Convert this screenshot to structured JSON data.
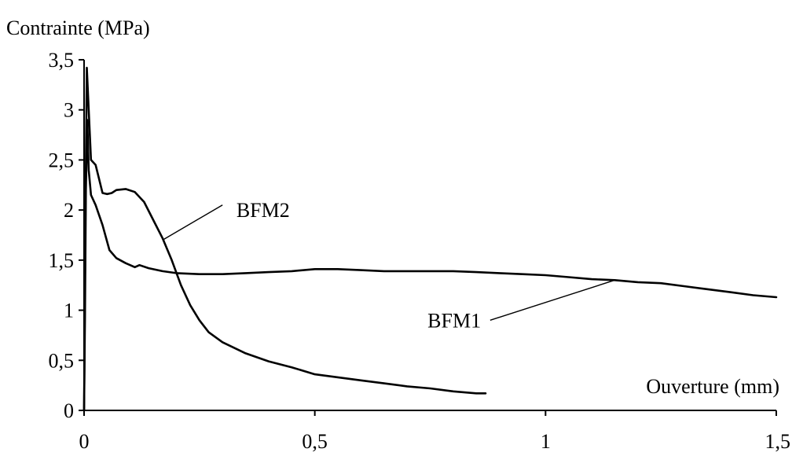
{
  "chart_data": {
    "type": "line",
    "ylabel": "Contrainte (MPa)",
    "xlabel": "Ouverture (mm)",
    "xlim": [
      0,
      1.5
    ],
    "ylim": [
      0,
      3.5
    ],
    "x_ticks": [
      0,
      0.5,
      1,
      1.5
    ],
    "x_tick_labels": [
      "0",
      "0,5",
      "1",
      "1,5"
    ],
    "y_ticks": [
      0,
      0.5,
      1,
      1.5,
      2,
      2.5,
      3,
      3.5
    ],
    "y_tick_labels": [
      "0",
      "0,5",
      "1",
      "1,5",
      "2",
      "2,5",
      "3",
      "3,5"
    ],
    "grid": false,
    "legend": "none",
    "series": [
      {
        "name": "BFM1",
        "color": "#000000",
        "points": [
          [
            0,
            0
          ],
          [
            0.002,
            1.0
          ],
          [
            0.004,
            2.2
          ],
          [
            0.007,
            2.9
          ],
          [
            0.01,
            2.4
          ],
          [
            0.015,
            2.15
          ],
          [
            0.025,
            2.05
          ],
          [
            0.04,
            1.85
          ],
          [
            0.055,
            1.6
          ],
          [
            0.07,
            1.52
          ],
          [
            0.09,
            1.47
          ],
          [
            0.11,
            1.43
          ],
          [
            0.12,
            1.45
          ],
          [
            0.14,
            1.42
          ],
          [
            0.17,
            1.39
          ],
          [
            0.2,
            1.37
          ],
          [
            0.25,
            1.36
          ],
          [
            0.3,
            1.36
          ],
          [
            0.35,
            1.37
          ],
          [
            0.4,
            1.38
          ],
          [
            0.45,
            1.39
          ],
          [
            0.5,
            1.41
          ],
          [
            0.55,
            1.41
          ],
          [
            0.6,
            1.4
          ],
          [
            0.65,
            1.39
          ],
          [
            0.7,
            1.39
          ],
          [
            0.75,
            1.39
          ],
          [
            0.8,
            1.39
          ],
          [
            0.85,
            1.38
          ],
          [
            0.9,
            1.37
          ],
          [
            0.95,
            1.36
          ],
          [
            1.0,
            1.35
          ],
          [
            1.05,
            1.33
          ],
          [
            1.1,
            1.31
          ],
          [
            1.15,
            1.3
          ],
          [
            1.2,
            1.28
          ],
          [
            1.25,
            1.27
          ],
          [
            1.3,
            1.24
          ],
          [
            1.35,
            1.21
          ],
          [
            1.4,
            1.18
          ],
          [
            1.45,
            1.15
          ],
          [
            1.5,
            1.13
          ]
        ]
      },
      {
        "name": "BFM2",
        "color": "#000000",
        "points": [
          [
            0,
            0
          ],
          [
            0.003,
            2.0
          ],
          [
            0.006,
            3.42
          ],
          [
            0.01,
            3.0
          ],
          [
            0.015,
            2.5
          ],
          [
            0.025,
            2.45
          ],
          [
            0.04,
            2.17
          ],
          [
            0.05,
            2.16
          ],
          [
            0.06,
            2.17
          ],
          [
            0.07,
            2.2
          ],
          [
            0.09,
            2.21
          ],
          [
            0.11,
            2.18
          ],
          [
            0.13,
            2.08
          ],
          [
            0.15,
            1.9
          ],
          [
            0.17,
            1.72
          ],
          [
            0.19,
            1.5
          ],
          [
            0.21,
            1.25
          ],
          [
            0.23,
            1.05
          ],
          [
            0.25,
            0.9
          ],
          [
            0.27,
            0.78
          ],
          [
            0.3,
            0.68
          ],
          [
            0.35,
            0.57
          ],
          [
            0.4,
            0.49
          ],
          [
            0.45,
            0.43
          ],
          [
            0.5,
            0.36
          ],
          [
            0.55,
            0.33
          ],
          [
            0.6,
            0.3
          ],
          [
            0.65,
            0.27
          ],
          [
            0.7,
            0.24
          ],
          [
            0.75,
            0.22
          ],
          [
            0.8,
            0.19
          ],
          [
            0.85,
            0.17
          ],
          [
            0.87,
            0.17
          ]
        ]
      }
    ],
    "annotations": [
      {
        "text": "BFM2",
        "target_series": "BFM2",
        "text_at": [
          0.33,
          2.0
        ],
        "line_from": [
          0.3,
          2.05
        ],
        "line_to": [
          0.17,
          1.7
        ]
      },
      {
        "text": "BFM1",
        "target_series": "BFM1",
        "text_at": [
          0.86,
          0.9
        ],
        "line_from": [
          0.88,
          0.9
        ],
        "line_to": [
          1.15,
          1.3
        ]
      }
    ]
  }
}
